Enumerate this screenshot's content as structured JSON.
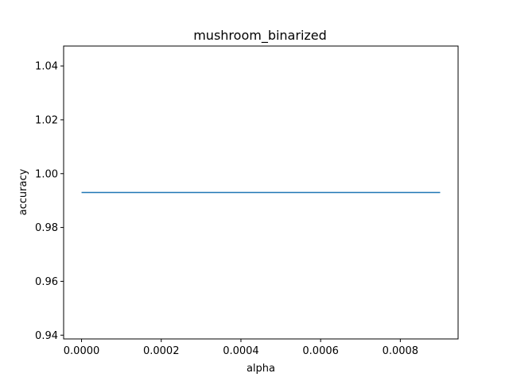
{
  "chart_data": {
    "type": "line",
    "title": "mushroom_binarized",
    "xlabel": "alpha",
    "ylabel": "accuracy",
    "xlim": [
      -4.5e-05,
      0.000945
    ],
    "ylim": [
      0.9386,
      1.0474
    ],
    "x_ticks": [
      0.0,
      0.0002,
      0.0004,
      0.0006,
      0.0008
    ],
    "x_tick_labels": [
      "0.0000",
      "0.0002",
      "0.0004",
      "0.0006",
      "0.0008"
    ],
    "y_ticks": [
      0.94,
      0.96,
      0.98,
      1.0,
      1.02,
      1.04
    ],
    "y_tick_labels": [
      "0.94",
      "0.96",
      "0.98",
      "1.00",
      "1.02",
      "1.04"
    ],
    "grid": false,
    "legend": "none",
    "series": [
      {
        "color": "#1f77b4",
        "x": [
          0.0,
          0.0001,
          0.0002,
          0.0003,
          0.0004,
          0.0005,
          0.0006,
          0.0007,
          0.0008,
          0.0009
        ],
        "y": [
          0.993,
          0.993,
          0.993,
          0.993,
          0.993,
          0.993,
          0.993,
          0.993,
          0.993,
          0.993
        ]
      }
    ]
  }
}
